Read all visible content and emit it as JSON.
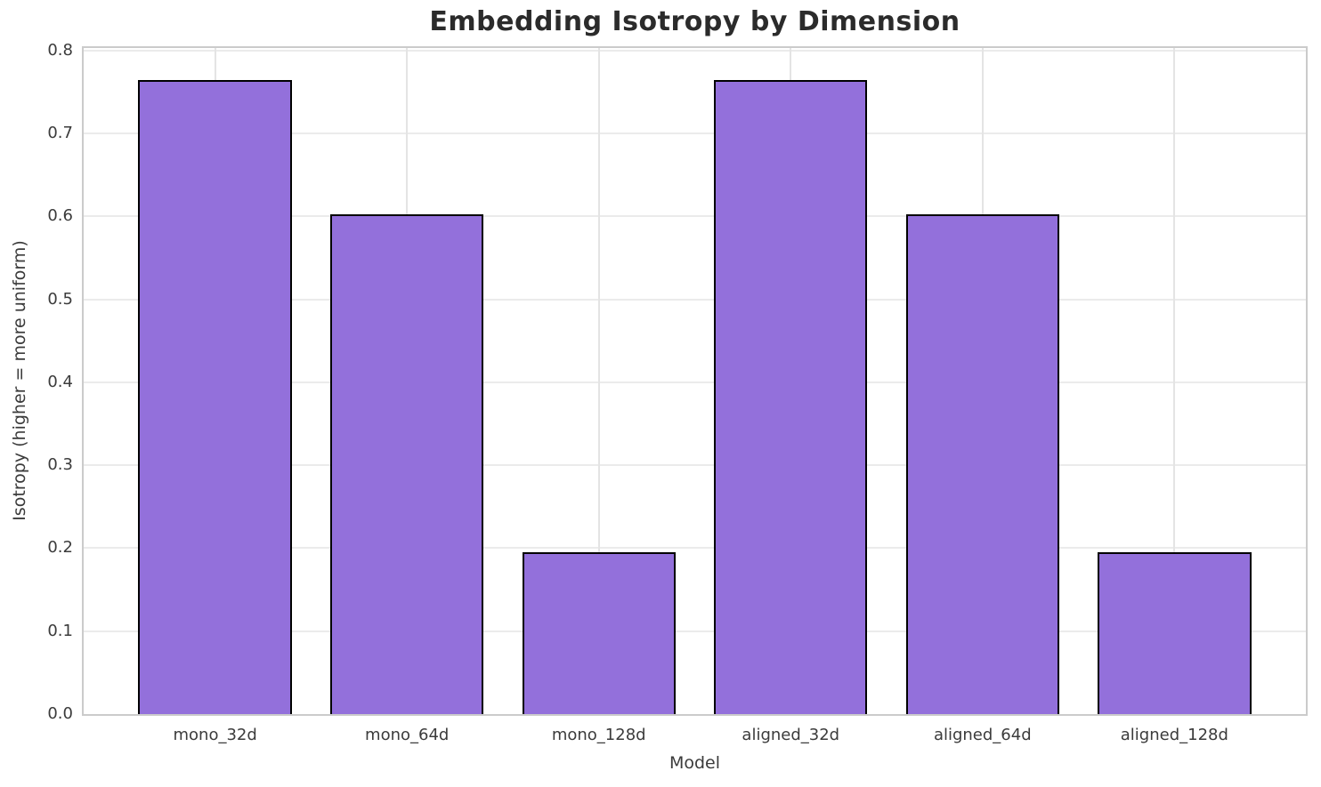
{
  "chart_data": {
    "type": "bar",
    "title": "Embedding Isotropy by Dimension",
    "xlabel": "Model",
    "ylabel": "Isotropy (higher = more uniform)",
    "categories": [
      "mono_32d",
      "mono_64d",
      "mono_128d",
      "aligned_32d",
      "aligned_64d",
      "aligned_128d"
    ],
    "values": [
      0.764,
      0.602,
      0.195,
      0.764,
      0.602,
      0.195
    ],
    "ylim": [
      0.0,
      0.8
    ],
    "yticks": [
      0.0,
      0.1,
      0.2,
      0.3,
      0.4,
      0.5,
      0.6,
      0.7,
      0.8
    ],
    "ytick_labels": [
      "0.0",
      "0.1",
      "0.2",
      "0.3",
      "0.4",
      "0.5",
      "0.6",
      "0.7",
      "0.8"
    ],
    "grid": true,
    "legend": null,
    "bar_color": "#9370DB",
    "bar_edge_color": "#000000",
    "grid_color": "#ebebeb",
    "spine_color": "#cbcbcb",
    "title_color": "#2b2b2b",
    "text_color": "#3b3b3b",
    "background": "#ffffff"
  }
}
